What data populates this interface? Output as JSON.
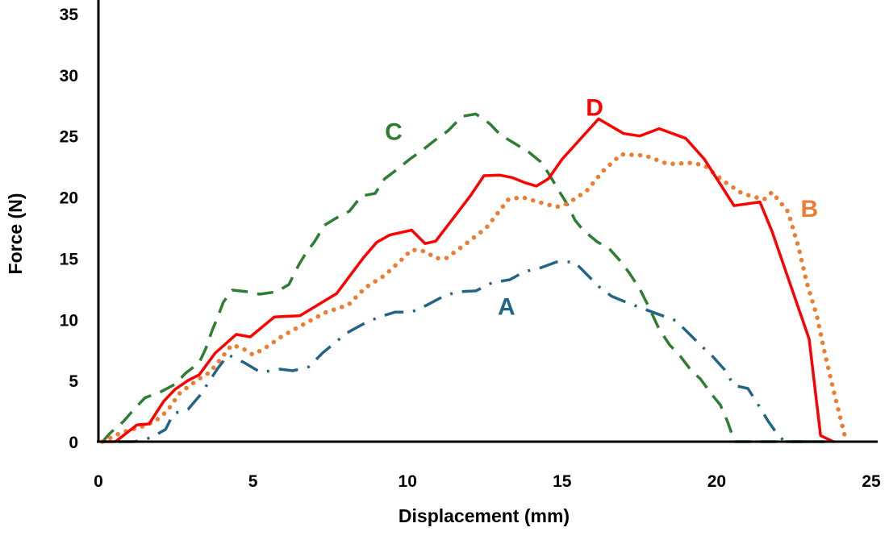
{
  "chart_data": {
    "type": "line",
    "title": "",
    "xlabel": "Displacement (mm)",
    "ylabel": "Force (N)",
    "xlim": [
      0,
      25
    ],
    "ylim": [
      0,
      35
    ],
    "xticks": [
      "0",
      "5",
      "10",
      "15",
      "20",
      "25"
    ],
    "yticks": [
      "0",
      "5",
      "10",
      "15",
      "20",
      "25",
      "30",
      "35"
    ],
    "grid": false,
    "legend": "inline labels",
    "series": [
      {
        "name": "A",
        "color": "#236585",
        "style": "dashdot",
        "label_pos": [
          13.2,
          11.1
        ],
        "points": [
          [
            0.65,
            0
          ],
          [
            1.17,
            0
          ],
          [
            1.7,
            0.33
          ],
          [
            2.17,
            1.0
          ],
          [
            2.43,
            2.3
          ],
          [
            2.9,
            2.64
          ],
          [
            3.29,
            3.8
          ],
          [
            3.6,
            5.0
          ],
          [
            3.86,
            6.0
          ],
          [
            4.2,
            7.1
          ],
          [
            4.72,
            6.46
          ],
          [
            5.25,
            5.67
          ],
          [
            5.87,
            5.93
          ],
          [
            6.29,
            5.8
          ],
          [
            6.81,
            6.13
          ],
          [
            7.25,
            7.25
          ],
          [
            8.04,
            8.9
          ],
          [
            8.56,
            9.62
          ],
          [
            9.08,
            10.2
          ],
          [
            9.6,
            10.6
          ],
          [
            10.13,
            10.6
          ],
          [
            10.65,
            11.2
          ],
          [
            11.17,
            11.9
          ],
          [
            11.61,
            12.26
          ],
          [
            12.21,
            12.33
          ],
          [
            12.73,
            13.0
          ],
          [
            13.31,
            13.25
          ],
          [
            13.78,
            13.9
          ],
          [
            14.25,
            14.17
          ],
          [
            14.82,
            14.7
          ],
          [
            15.4,
            14.7
          ],
          [
            15.79,
            13.7
          ],
          [
            16.18,
            12.7
          ],
          [
            16.6,
            11.9
          ],
          [
            17.17,
            11.3
          ],
          [
            18.03,
            10.5
          ],
          [
            18.68,
            9.9
          ],
          [
            19.08,
            8.9
          ],
          [
            19.52,
            7.8
          ],
          [
            19.86,
            7.0
          ],
          [
            20.25,
            5.9
          ],
          [
            20.56,
            4.6
          ],
          [
            21.01,
            4.35
          ],
          [
            21.35,
            3.0
          ],
          [
            21.66,
            1.7
          ],
          [
            21.95,
            0.66
          ],
          [
            22.2,
            0
          ],
          [
            23.5,
            0
          ]
        ]
      },
      {
        "name": "B",
        "color": "#ED7D31",
        "style": "dotted",
        "label_pos": [
          23.0,
          19.1
        ],
        "points": [
          [
            0.13,
            0
          ],
          [
            0.73,
            0.73
          ],
          [
            1.51,
            1.32
          ],
          [
            1.85,
            1.71
          ],
          [
            2.22,
            2.5
          ],
          [
            2.64,
            4.0
          ],
          [
            3.26,
            5.14
          ],
          [
            3.6,
            5.67
          ],
          [
            3.86,
            6.46
          ],
          [
            4.31,
            7.9
          ],
          [
            4.65,
            7.65
          ],
          [
            4.99,
            7.12
          ],
          [
            5.35,
            7.58
          ],
          [
            5.95,
            8.64
          ],
          [
            6.65,
            9.62
          ],
          [
            7.33,
            10.55
          ],
          [
            8.09,
            11.2
          ],
          [
            8.64,
            12.6
          ],
          [
            9.26,
            13.6
          ],
          [
            9.86,
            15.0
          ],
          [
            10.13,
            15.7
          ],
          [
            10.57,
            15.56
          ],
          [
            10.91,
            15.0
          ],
          [
            11.25,
            15.0
          ],
          [
            11.87,
            16.15
          ],
          [
            12.55,
            17.5
          ],
          [
            13.26,
            19.8
          ],
          [
            13.7,
            20.0
          ],
          [
            14.38,
            19.5
          ],
          [
            14.82,
            19.2
          ],
          [
            15.16,
            19.45
          ],
          [
            15.79,
            20.5
          ],
          [
            16.31,
            22.1
          ],
          [
            16.91,
            23.5
          ],
          [
            17.69,
            23.4
          ],
          [
            18.42,
            22.7
          ],
          [
            19.18,
            22.8
          ],
          [
            19.6,
            22.6
          ],
          [
            20.17,
            21.4
          ],
          [
            20.82,
            20.3
          ],
          [
            21.53,
            19.8
          ],
          [
            21.79,
            20.4
          ],
          [
            22.31,
            18.8
          ],
          [
            22.65,
            15.9
          ],
          [
            22.91,
            13.05
          ],
          [
            23.25,
            10.2
          ],
          [
            23.51,
            7.1
          ],
          [
            23.77,
            4.3
          ],
          [
            24.03,
            1.65
          ],
          [
            24.16,
            0.33
          ],
          [
            24.2,
            0
          ]
        ]
      },
      {
        "name": "C",
        "color": "#2E7D32",
        "style": "dashed",
        "label_pos": [
          9.55,
          25.4
        ],
        "points": [
          [
            0.13,
            0
          ],
          [
            0.39,
            0.73
          ],
          [
            0.81,
            1.65
          ],
          [
            1.17,
            2.7
          ],
          [
            1.51,
            3.6
          ],
          [
            1.96,
            4.0
          ],
          [
            2.48,
            4.7
          ],
          [
            2.82,
            5.6
          ],
          [
            3.26,
            6.46
          ],
          [
            3.47,
            7.6
          ],
          [
            3.68,
            9.1
          ],
          [
            3.86,
            10.2
          ],
          [
            4.04,
            11.4
          ],
          [
            4.33,
            12.4
          ],
          [
            4.83,
            12.26
          ],
          [
            5.22,
            12.06
          ],
          [
            5.77,
            12.26
          ],
          [
            6.16,
            12.85
          ],
          [
            6.47,
            14.4
          ],
          [
            6.73,
            15.5
          ],
          [
            6.99,
            16.35
          ],
          [
            7.31,
            17.7
          ],
          [
            7.7,
            18.3
          ],
          [
            8.12,
            18.85
          ],
          [
            8.51,
            20.1
          ],
          [
            8.95,
            20.3
          ],
          [
            9.26,
            21.5
          ],
          [
            9.68,
            22.3
          ],
          [
            10.07,
            23.1
          ],
          [
            10.46,
            23.8
          ],
          [
            10.91,
            24.7
          ],
          [
            11.3,
            25.4
          ],
          [
            11.77,
            26.6
          ],
          [
            12.21,
            26.8
          ],
          [
            12.66,
            26.0
          ],
          [
            13.0,
            25.1
          ],
          [
            13.52,
            24.3
          ],
          [
            13.91,
            23.7
          ],
          [
            14.3,
            22.9
          ],
          [
            14.56,
            21.95
          ],
          [
            14.9,
            20.5
          ],
          [
            15.16,
            19.45
          ],
          [
            15.42,
            18.1
          ],
          [
            15.68,
            17.3
          ],
          [
            16.13,
            16.35
          ],
          [
            16.52,
            15.8
          ],
          [
            16.91,
            14.7
          ],
          [
            17.17,
            13.8
          ],
          [
            17.51,
            12.5
          ],
          [
            17.77,
            11.2
          ],
          [
            18.14,
            9.2
          ],
          [
            18.48,
            7.9
          ],
          [
            18.82,
            7.0
          ],
          [
            19.18,
            5.8
          ],
          [
            19.47,
            5.14
          ],
          [
            19.86,
            3.8
          ],
          [
            20.12,
            3.0
          ],
          [
            20.35,
            1.65
          ],
          [
            20.51,
            0.5
          ],
          [
            20.56,
            0
          ],
          [
            23.5,
            0
          ]
        ]
      },
      {
        "name": "D",
        "color": "#FF0000",
        "style": "solid",
        "label_pos": [
          16.05,
          27.4
        ],
        "points": [
          [
            0.13,
            0
          ],
          [
            0.55,
            0
          ],
          [
            1.25,
            1.38
          ],
          [
            1.64,
            1.45
          ],
          [
            2.11,
            3.3
          ],
          [
            2.48,
            4.28
          ],
          [
            2.9,
            5.0
          ],
          [
            3.26,
            5.47
          ],
          [
            3.78,
            7.25
          ],
          [
            4.46,
            8.77
          ],
          [
            4.91,
            8.57
          ],
          [
            5.69,
            10.2
          ],
          [
            6.52,
            10.3
          ],
          [
            7.7,
            12.1
          ],
          [
            8.56,
            15.0
          ],
          [
            9.0,
            16.3
          ],
          [
            9.42,
            16.9
          ],
          [
            10.13,
            17.3
          ],
          [
            10.57,
            16.2
          ],
          [
            10.91,
            16.4
          ],
          [
            12.03,
            20.1
          ],
          [
            12.47,
            21.75
          ],
          [
            12.99,
            21.8
          ],
          [
            13.38,
            21.6
          ],
          [
            13.78,
            21.2
          ],
          [
            14.17,
            20.9
          ],
          [
            14.56,
            21.5
          ],
          [
            15.0,
            23.1
          ],
          [
            16.18,
            26.4
          ],
          [
            16.99,
            25.2
          ],
          [
            17.51,
            25.0
          ],
          [
            18.14,
            25.6
          ],
          [
            19.0,
            24.8
          ],
          [
            19.6,
            23.1
          ],
          [
            20.56,
            19.3
          ],
          [
            21.4,
            19.6
          ],
          [
            21.79,
            17.2
          ],
          [
            22.99,
            8.4
          ],
          [
            23.36,
            0.5
          ],
          [
            23.77,
            0
          ]
        ]
      }
    ]
  }
}
